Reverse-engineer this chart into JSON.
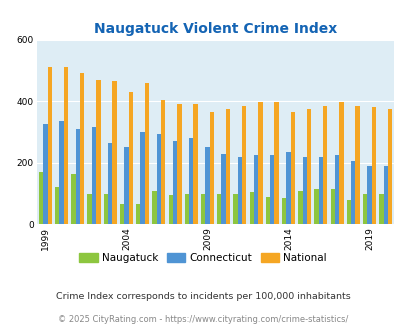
{
  "title": "Naugatuck Violent Crime Index",
  "years": [
    1999,
    2000,
    2001,
    2002,
    2003,
    2004,
    2005,
    2006,
    2007,
    2008,
    2009,
    2010,
    2011,
    2012,
    2013,
    2014,
    2015,
    2016,
    2017,
    2018,
    2019,
    2020
  ],
  "naugatuck": [
    170,
    120,
    165,
    100,
    100,
    65,
    65,
    110,
    95,
    100,
    100,
    100,
    100,
    105,
    90,
    85,
    110,
    115,
    115,
    80,
    100,
    100
  ],
  "connecticut": [
    325,
    335,
    310,
    315,
    265,
    250,
    300,
    295,
    270,
    280,
    250,
    230,
    218,
    225,
    225,
    235,
    218,
    220,
    225,
    207,
    188,
    188
  ],
  "national": [
    510,
    510,
    490,
    470,
    465,
    430,
    460,
    405,
    390,
    390,
    365,
    375,
    383,
    398,
    397,
    365,
    375,
    383,
    398,
    383,
    380,
    375
  ],
  "colors": {
    "naugatuck": "#8dc63f",
    "connecticut": "#4f94d4",
    "national": "#f5a623"
  },
  "ylim": [
    0,
    600
  ],
  "yticks": [
    0,
    200,
    400,
    600
  ],
  "xlabel_ticks": [
    1999,
    2004,
    2009,
    2014,
    2019
  ],
  "bg_color": "#deedf5",
  "grid_color": "#ffffff",
  "title_color": "#1464b4",
  "footnote1": "Crime Index corresponds to incidents per 100,000 inhabitants",
  "footnote2": "© 2025 CityRating.com - https://www.cityrating.com/crime-statistics/",
  "legend_labels": [
    "Naugatuck",
    "Connecticut",
    "National"
  ]
}
